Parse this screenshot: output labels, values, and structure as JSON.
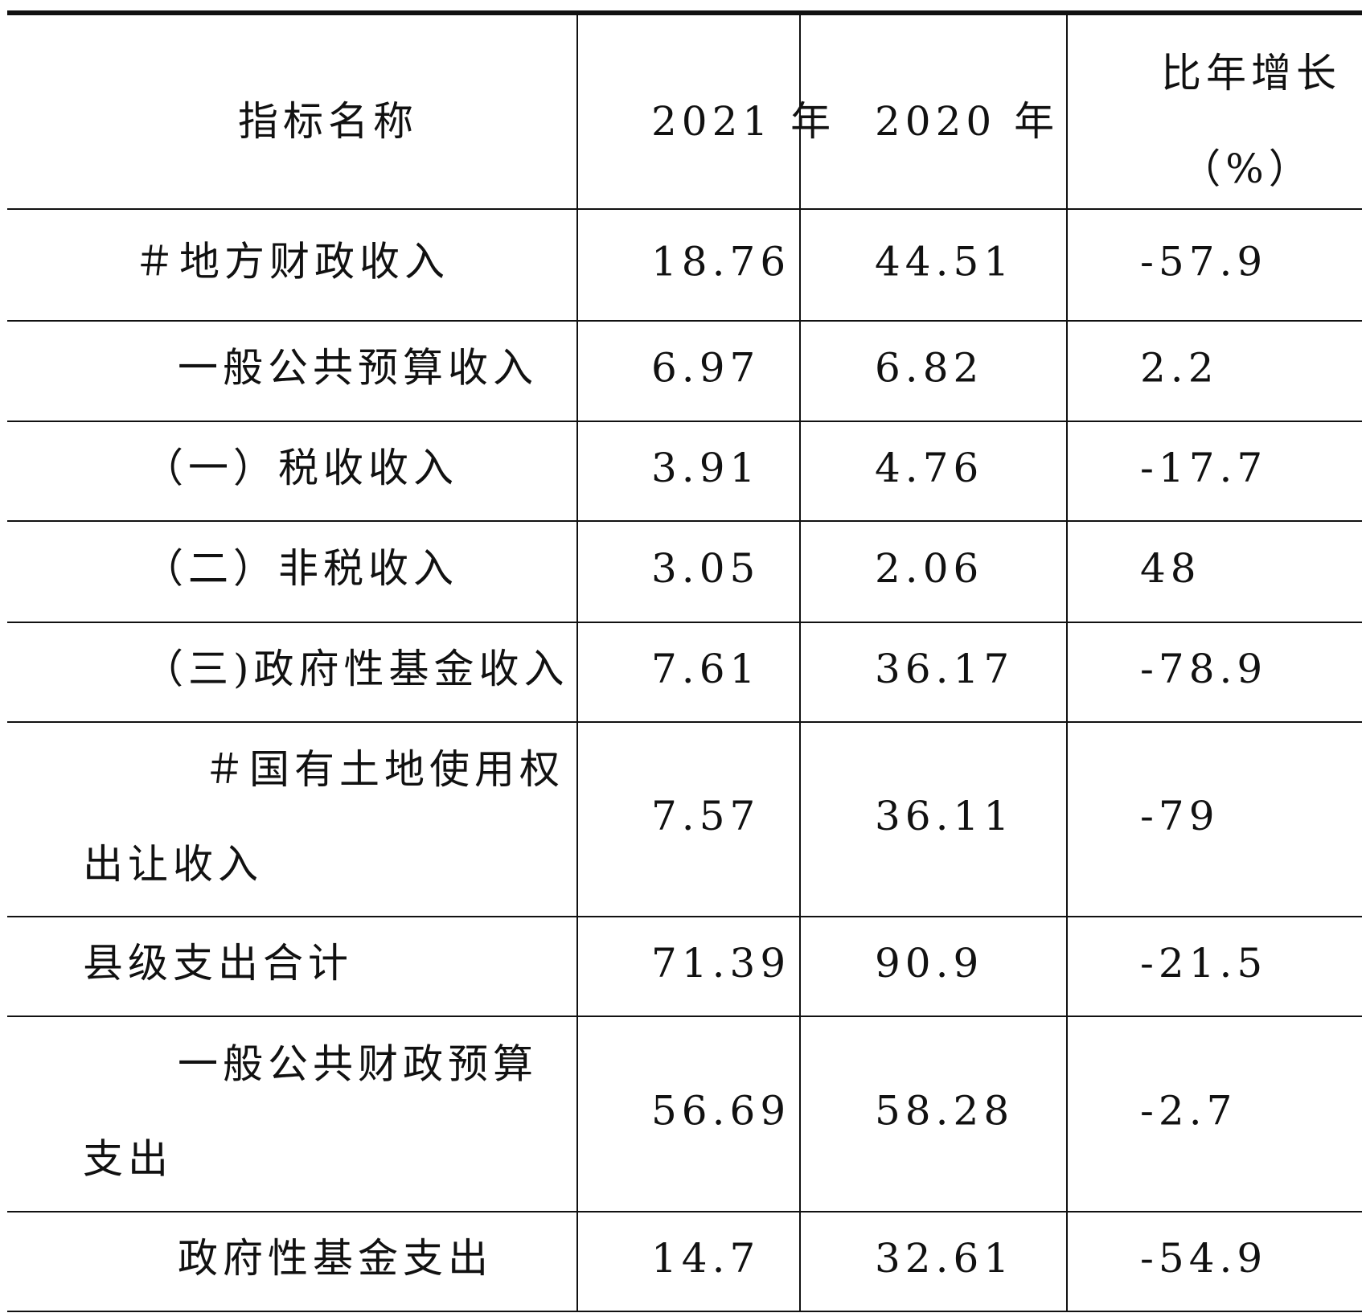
{
  "table": {
    "header": [
      "指标名称",
      "2021 年",
      "2020 年",
      [
        "比年增长",
        "（%）"
      ]
    ],
    "rows": [
      [
        [
          "＃地方财政收入"
        ],
        "18.76",
        "44.51",
        "-57.9"
      ],
      [
        [
          "一般公共预算收入"
        ],
        "6.97",
        "6.82",
        "2.2"
      ],
      [
        [
          "（一）税收收入"
        ],
        "3.91",
        "4.76",
        "-17.7"
      ],
      [
        [
          "（二）非税收入"
        ],
        "3.05",
        "2.06",
        "48"
      ],
      [
        [
          "（三)政府性基金收入"
        ],
        "7.61",
        "36.17",
        "-78.9"
      ],
      [
        [
          "＃国有土地使用权",
          "出让收入"
        ],
        "7.57",
        "36.11",
        "-79"
      ],
      [
        [
          "县级支出合计"
        ],
        "71.39",
        "90.9",
        "-21.5"
      ],
      [
        [
          "一般公共财政预算",
          "支出"
        ],
        "56.69",
        "58.28",
        "-2.7"
      ],
      [
        [
          "政府性基金支出"
        ],
        "14.7",
        "32.61",
        "-54.9"
      ]
    ]
  }
}
